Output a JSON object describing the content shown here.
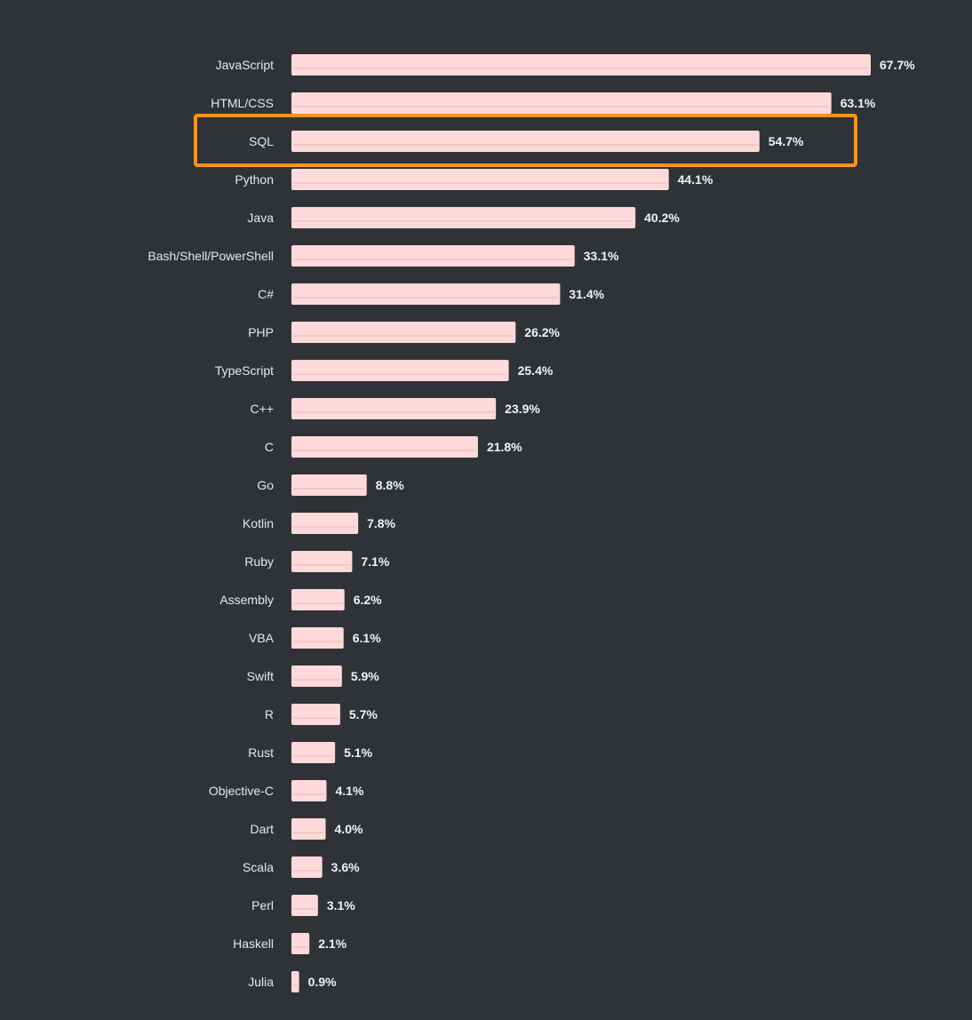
{
  "chart_data": {
    "type": "bar",
    "orientation": "horizontal",
    "title": "",
    "xlabel": "",
    "ylabel": "",
    "xlim": [
      0,
      67.7
    ],
    "grid": false,
    "highlighted_category": "SQL",
    "categories": [
      "JavaScript",
      "HTML/CSS",
      "SQL",
      "Python",
      "Java",
      "Bash/Shell/PowerShell",
      "C#",
      "PHP",
      "TypeScript",
      "C++",
      "C",
      "Go",
      "Kotlin",
      "Ruby",
      "Assembly",
      "VBA",
      "Swift",
      "R",
      "Rust",
      "Objective-C",
      "Dart",
      "Scala",
      "Perl",
      "Haskell",
      "Julia"
    ],
    "values": [
      67.7,
      63.1,
      54.7,
      44.1,
      40.2,
      33.1,
      31.4,
      26.2,
      25.4,
      23.9,
      21.8,
      8.8,
      7.8,
      7.1,
      6.2,
      6.1,
      5.9,
      5.7,
      5.1,
      4.1,
      4.0,
      3.6,
      3.1,
      2.1,
      0.9
    ],
    "value_labels": [
      "67.7%",
      "63.1%",
      "54.7%",
      "44.1%",
      "40.2%",
      "33.1%",
      "31.4%",
      "26.2%",
      "25.4%",
      "23.9%",
      "21.8%",
      "8.8%",
      "7.8%",
      "7.1%",
      "6.2%",
      "6.1%",
      "5.9%",
      "5.7%",
      "5.1%",
      "4.1%",
      "4.0%",
      "3.6%",
      "3.1%",
      "2.1%",
      "0.9%"
    ]
  },
  "colors": {
    "background": "#2f3337",
    "bar": "#fdd9d9",
    "bar_shade": "#f5c6c6",
    "highlight_box": "#f7931e",
    "category_text": "#e8e8e8",
    "value_text": "#f2f2f2"
  }
}
